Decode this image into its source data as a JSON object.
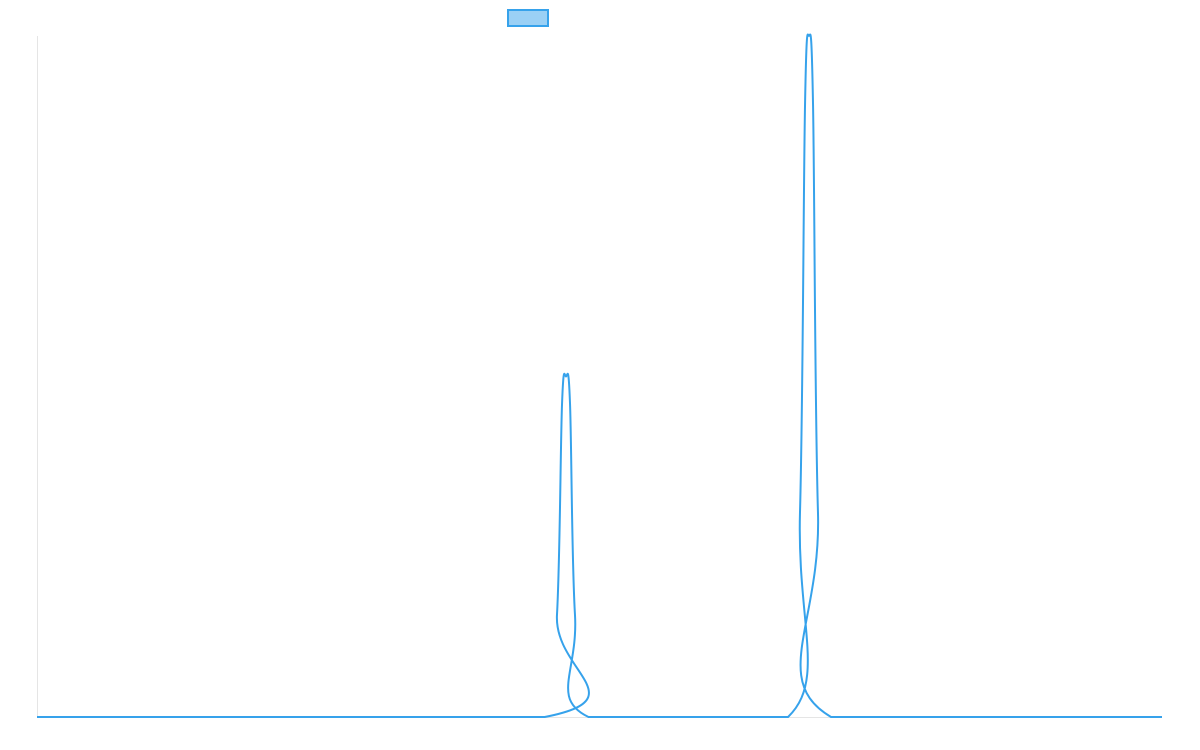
{
  "chart_data": {
    "type": "line",
    "title": "",
    "xlabel": "",
    "ylabel": "",
    "grid": false,
    "legend_placement": "top-center",
    "x_range": [
      0,
      1
    ],
    "ylim": [
      0,
      1
    ],
    "series": [
      {
        "name": "",
        "color": "#36a2eb",
        "fill_color": "#9ad0f5",
        "points": [
          [
            0.0,
            0.0
          ],
          [
            0.4513,
            0.0
          ],
          [
            0.4622,
            0.15
          ],
          [
            0.4667,
            0.46
          ],
          [
            0.4702,
            0.5
          ],
          [
            0.4738,
            0.46
          ],
          [
            0.4782,
            0.15
          ],
          [
            0.4902,
            0.0
          ],
          [
            0.6676,
            0.0
          ],
          [
            0.6782,
            0.3
          ],
          [
            0.6827,
            0.9
          ],
          [
            0.6862,
            1.0
          ],
          [
            0.6898,
            0.9
          ],
          [
            0.6942,
            0.3
          ],
          [
            0.7058,
            0.0
          ],
          [
            1.0,
            0.0
          ]
        ]
      }
    ]
  }
}
